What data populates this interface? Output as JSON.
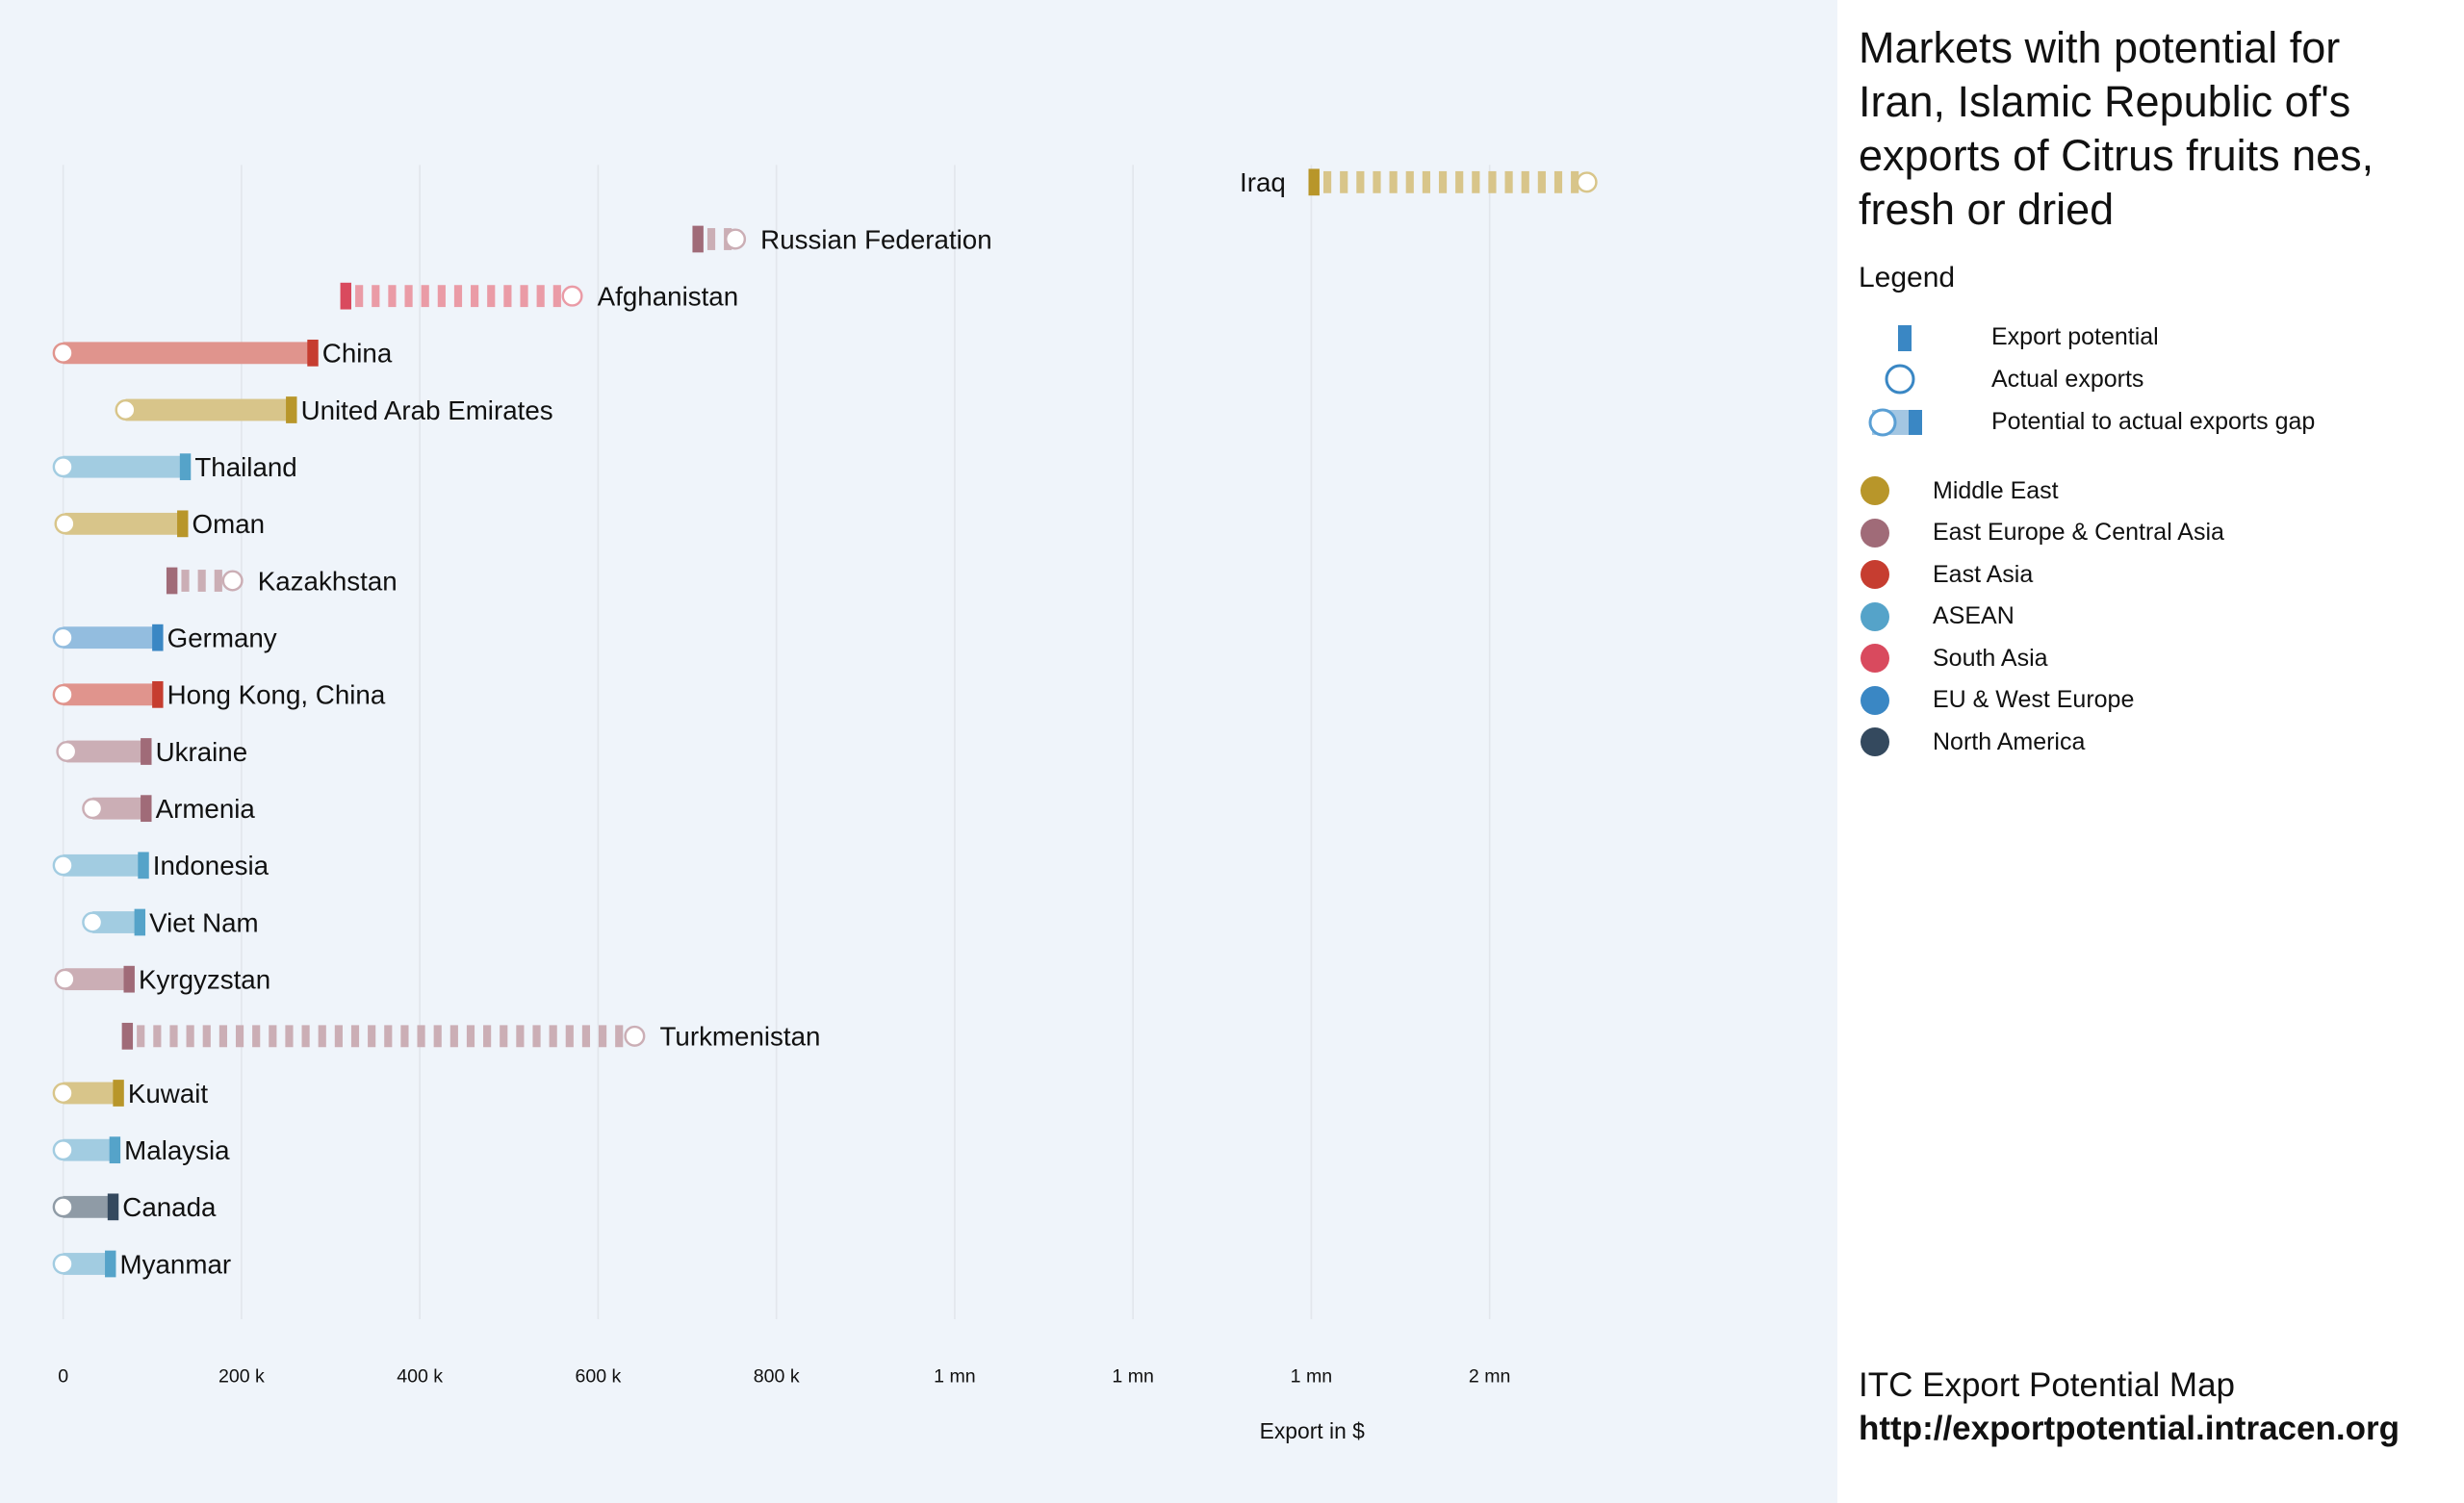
{
  "title": "Markets with potential for Iran, Islamic Republic of's exports of Citrus fruits nes, fresh or dried",
  "legend": {
    "heading": "Legend",
    "symbols": [
      "Export potential",
      "Actual exports",
      "Potential to actual exports gap"
    ],
    "regions": [
      {
        "name": "Middle East",
        "color": "#b8962a"
      },
      {
        "name": "East Europe & Central Asia",
        "color": "#a06b78"
      },
      {
        "name": "East Asia",
        "color": "#c63d30"
      },
      {
        "name": "ASEAN",
        "color": "#55a3c9"
      },
      {
        "name": "South Asia",
        "color": "#d94a5e"
      },
      {
        "name": "EU & West Europe",
        "color": "#3a87c4"
      },
      {
        "name": "North America",
        "color": "#34495e"
      }
    ]
  },
  "footer": {
    "source": "ITC Export Potential Map",
    "url": "http://exportpotential.intracen.org"
  },
  "chart_data": {
    "type": "dumbbell",
    "xlabel": "Export in $",
    "xlim": [
      0,
      2300000
    ],
    "ticks": [
      {
        "value": 0,
        "label": "0"
      },
      {
        "value": 200000,
        "label": "200 k"
      },
      {
        "value": 400000,
        "label": "400 k"
      },
      {
        "value": 600000,
        "label": "600 k"
      },
      {
        "value": 800000,
        "label": "800 k"
      },
      {
        "value": 1000000,
        "label": "1 mn"
      },
      {
        "value": 1200000,
        "label": "1 mn"
      },
      {
        "value": 1400000,
        "label": "1 mn"
      },
      {
        "value": 1600000,
        "label": "2 mn"
      }
    ],
    "grid": true,
    "markets": [
      {
        "name": "Iraq",
        "region": "Middle East",
        "potential": 1403000,
        "actual": 1709000
      },
      {
        "name": "Russian Federation",
        "region": "East Europe & Central Asia",
        "potential": 712000,
        "actual": 754000
      },
      {
        "name": "Afghanistan",
        "region": "South Asia",
        "potential": 317000,
        "actual": 571000
      },
      {
        "name": "China",
        "region": "East Asia",
        "potential": 280000,
        "actual": 0
      },
      {
        "name": "United Arab Emirates",
        "region": "Middle East",
        "potential": 256000,
        "actual": 70000
      },
      {
        "name": "Thailand",
        "region": "ASEAN",
        "potential": 137000,
        "actual": 0
      },
      {
        "name": "Oman",
        "region": "Middle East",
        "potential": 134000,
        "actual": 2000
      },
      {
        "name": "Kazakhstan",
        "region": "East Europe & Central Asia",
        "potential": 122000,
        "actual": 190000
      },
      {
        "name": "Germany",
        "region": "EU & West Europe",
        "potential": 106000,
        "actual": 0
      },
      {
        "name": "Hong Kong, China",
        "region": "East Asia",
        "potential": 106000,
        "actual": 0
      },
      {
        "name": "Ukraine",
        "region": "East Europe & Central Asia",
        "potential": 93000,
        "actual": 4000
      },
      {
        "name": "Armenia",
        "region": "East Europe & Central Asia",
        "potential": 93000,
        "actual": 33000
      },
      {
        "name": "Indonesia",
        "region": "ASEAN",
        "potential": 90000,
        "actual": 0
      },
      {
        "name": "Viet Nam",
        "region": "ASEAN",
        "potential": 86000,
        "actual": 33000
      },
      {
        "name": "Kyrgyzstan",
        "region": "East Europe & Central Asia",
        "potential": 74000,
        "actual": 2000
      },
      {
        "name": "Turkmenistan",
        "region": "East Europe & Central Asia",
        "potential": 72000,
        "actual": 641000
      },
      {
        "name": "Kuwait",
        "region": "Middle East",
        "potential": 62000,
        "actual": 0
      },
      {
        "name": "Malaysia",
        "region": "ASEAN",
        "potential": 58000,
        "actual": 0
      },
      {
        "name": "Canada",
        "region": "North America",
        "potential": 56000,
        "actual": 0
      },
      {
        "name": "Myanmar",
        "region": "ASEAN",
        "potential": 53000,
        "actual": 0
      }
    ]
  }
}
